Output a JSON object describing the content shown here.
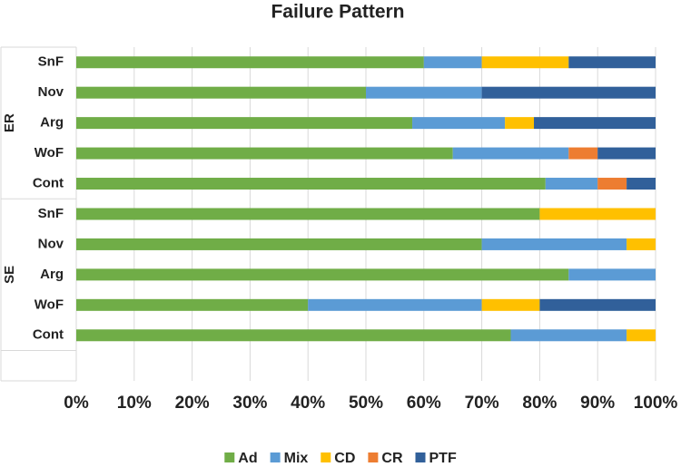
{
  "chart_data": {
    "type": "stacked-bar-horizontal",
    "title": "Failure  Pattern",
    "groups": [
      {
        "name": "ER",
        "categories": [
          "SnF",
          "Nov",
          "Arg",
          "WoF",
          "Cont"
        ]
      },
      {
        "name": "SE",
        "categories": [
          "SnF",
          "Nov",
          "Arg",
          "WoF",
          "Cont"
        ]
      }
    ],
    "series": [
      {
        "name": "Ad",
        "color": "#70ad47",
        "values": [
          60,
          50,
          58,
          65,
          81,
          80,
          70,
          85,
          40,
          75
        ]
      },
      {
        "name": "Mix",
        "color": "#5b9bd5",
        "values": [
          10,
          20,
          16,
          20,
          9,
          0,
          25,
          15,
          30,
          20
        ]
      },
      {
        "name": "CD",
        "color": "#ffc000",
        "values": [
          15,
          0,
          5,
          0,
          0,
          20,
          5,
          0,
          10,
          5
        ]
      },
      {
        "name": "CR",
        "color": "#ed7d31",
        "values": [
          0,
          0,
          0,
          5,
          5,
          0,
          0,
          0,
          0,
          0
        ]
      },
      {
        "name": "PTF",
        "color": "#31609a",
        "values": [
          15,
          30,
          21,
          10,
          5,
          0,
          0,
          0,
          20,
          0
        ]
      }
    ],
    "xlim": [
      0,
      100
    ],
    "xticks": [
      {
        "value": 0,
        "label": "0%"
      },
      {
        "value": 10,
        "label": "10%"
      },
      {
        "value": 20,
        "label": "20%"
      },
      {
        "value": 30,
        "label": "30%"
      },
      {
        "value": 40,
        "label": "40%"
      },
      {
        "value": 50,
        "label": "50%"
      },
      {
        "value": 60,
        "label": "60%"
      },
      {
        "value": 70,
        "label": "70%"
      },
      {
        "value": 80,
        "label": "80%"
      },
      {
        "value": 90,
        "label": "90%"
      },
      {
        "value": 100,
        "label": "100%"
      }
    ],
    "grid": true,
    "legend": "bottom"
  }
}
